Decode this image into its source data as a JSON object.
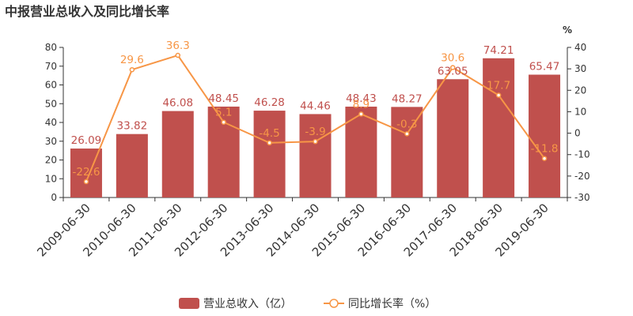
{
  "title": "中报营业总收入及同比增长率",
  "chart_data": {
    "type": "bar",
    "title": "中报营业总收入及同比增长率",
    "categories": [
      "2009-06-30",
      "2010-06-30",
      "2011-06-30",
      "2012-06-30",
      "2013-06-30",
      "2014-06-30",
      "2015-06-30",
      "2016-06-30",
      "2017-06-30",
      "2018-06-30",
      "2019-06-30"
    ],
    "series": [
      {
        "name": "营业总收入（亿）",
        "type": "bar",
        "axis": "left",
        "values": [
          26.09,
          33.82,
          46.08,
          48.45,
          46.28,
          44.46,
          48.43,
          48.27,
          63.05,
          74.21,
          65.47
        ],
        "labels": [
          "26.09",
          "33.82",
          "46.08",
          "48.45",
          "46.28",
          "44.46",
          "48.43",
          "48.27",
          "63.05",
          "74.21",
          "65.47"
        ],
        "color": "#c0504d"
      },
      {
        "name": "同比增长率（%）",
        "type": "line",
        "axis": "right",
        "values": [
          -22.6,
          29.6,
          36.3,
          5.1,
          -4.5,
          -3.9,
          8.9,
          -0.3,
          30.6,
          17.7,
          -11.8
        ],
        "labels": [
          "-22.6",
          "29.6",
          "36.3",
          "5.1",
          "-4.5",
          "-3.9",
          "8.9",
          "-0.3",
          "30.6",
          "17.7",
          "-11.8"
        ],
        "color": "#f79646"
      }
    ],
    "y_left": {
      "min": 0,
      "max": 80,
      "ticks": [
        "0",
        "10",
        "20",
        "30",
        "40",
        "50",
        "60",
        "70",
        "80"
      ]
    },
    "y_right": {
      "min": -30,
      "max": 40,
      "ticks": [
        "-30",
        "-20",
        "-10",
        "0",
        "10",
        "20",
        "30",
        "40"
      ],
      "unit": "%"
    },
    "grid": false,
    "legend_position": "bottom-center"
  }
}
